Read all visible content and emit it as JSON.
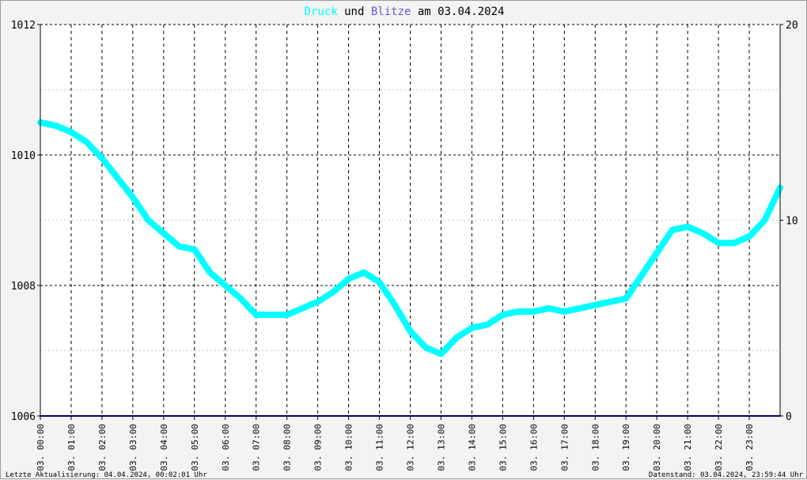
{
  "title": {
    "series1": "Druck",
    "connector1": " und ",
    "series2": "Blitze",
    "connector2": " am ",
    "date": "03.04.2024"
  },
  "colors": {
    "pressure": "#00ffff",
    "lightning": "#6a5acd",
    "baseline": "#000080",
    "background": "#f3f3f3",
    "plot": "#ffffff"
  },
  "footer": {
    "left": "Letzte Aktualisierung: 04.04.2024, 00:02:01 Uhr",
    "right": "Datenstand: 03.04.2024, 23:59:44 Uhr"
  },
  "chart_data": {
    "type": "line",
    "y_left": {
      "min": 1006,
      "max": 1012,
      "ticks": [
        "1012",
        "1010",
        "1008",
        "1006"
      ]
    },
    "y_right": {
      "min": 0,
      "max": 20,
      "ticks": [
        "20",
        "10",
        "0"
      ]
    },
    "x_ticks": [
      "03. 00:00",
      "03. 01:00",
      "03. 02:00",
      "03. 03:00",
      "03. 04:00",
      "03. 05:00",
      "03. 06:00",
      "03. 07:00",
      "03. 08:00",
      "03. 09:00",
      "03. 10:00",
      "03. 11:00",
      "03. 12:00",
      "03. 13:00",
      "03. 14:00",
      "03. 15:00",
      "03. 16:00",
      "03. 17:00",
      "03. 18:00",
      "03. 19:00",
      "03. 20:00",
      "03. 21:00",
      "03. 22:00",
      "03. 23:00"
    ],
    "grid": true,
    "series": [
      {
        "name": "Druck",
        "axis": "left",
        "x_hours": [
          0,
          0.5,
          1,
          1.5,
          2,
          2.5,
          3,
          3.5,
          4,
          4.5,
          5,
          5.5,
          6,
          6.5,
          7,
          7.5,
          8,
          8.5,
          9,
          9.5,
          10,
          10.5,
          11,
          11.5,
          12,
          12.5,
          13,
          13.5,
          14,
          14.5,
          15,
          15.5,
          16,
          16.5,
          17,
          17.5,
          18,
          18.5,
          19,
          19.5,
          20,
          20.5,
          21,
          21.5,
          22,
          22.5,
          23,
          23.5,
          24
        ],
        "values": [
          1010.5,
          1010.45,
          1010.35,
          1010.2,
          1009.95,
          1009.65,
          1009.35,
          1009.0,
          1008.8,
          1008.6,
          1008.55,
          1008.2,
          1008.0,
          1007.8,
          1007.55,
          1007.55,
          1007.55,
          1007.65,
          1007.75,
          1007.9,
          1008.1,
          1008.2,
          1008.05,
          1007.7,
          1007.3,
          1007.05,
          1006.95,
          1007.2,
          1007.35,
          1007.4,
          1007.55,
          1007.6,
          1007.6,
          1007.65,
          1007.6,
          1007.65,
          1007.7,
          1007.75,
          1007.8,
          1008.15,
          1008.5,
          1008.85,
          1008.9,
          1008.8,
          1008.65,
          1008.65,
          1008.75,
          1009.0,
          1009.5
        ]
      },
      {
        "name": "Blitze",
        "axis": "right",
        "x_hours": [
          0,
          24
        ],
        "values": [
          0,
          0
        ]
      }
    ]
  }
}
